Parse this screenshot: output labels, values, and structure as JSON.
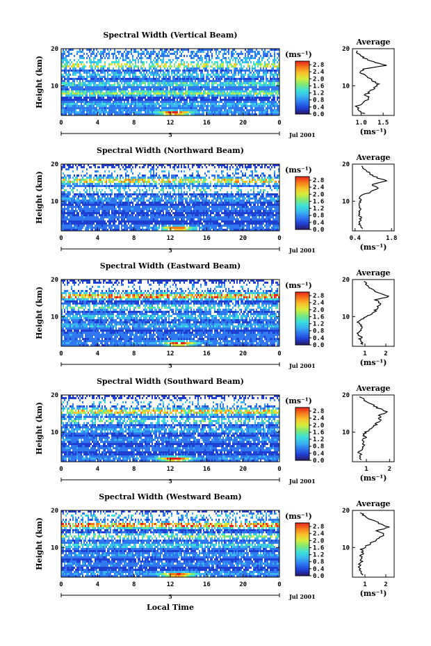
{
  "figure": {
    "xlabel": "Local Time",
    "date_label": "Jul 2001",
    "day_marker": "5",
    "ylabel": "Height (km)",
    "units_label": "(ms⁻¹)",
    "avg_title": "Average",
    "avg_xlabel": "(ms⁻¹)"
  },
  "palette": {
    "stops": [
      "#2a1a6a",
      "#1f3fd0",
      "#2f78f0",
      "#39b6f0",
      "#3ee0d8",
      "#7de87a",
      "#d6ec3c",
      "#f7c12a",
      "#f77a1c",
      "#e8231a"
    ]
  },
  "chart_data": [
    {
      "type": "heatmap",
      "title": "Spectral Width (Vertical Beam)",
      "x_ticks": [
        "0",
        "4",
        "8",
        "12",
        "16",
        "20",
        "0"
      ],
      "xlim": [
        0,
        24
      ],
      "y_ticks": [
        "20",
        "10"
      ],
      "ylim": [
        2,
        20
      ],
      "colorbar_ticks": [
        "2.8",
        "2.4",
        "2.0",
        "1.6",
        "1.2",
        "0.8",
        "0.4",
        "0.0"
      ],
      "colorbar_range": [
        0.0,
        3.0
      ],
      "layers": [
        {
          "h": 3.0,
          "w": 0.55,
          "jit": 0.2,
          "cov": 0.95
        },
        {
          "h": 5.0,
          "w": 0.75,
          "jit": 0.25,
          "cov": 0.95
        },
        {
          "h": 8.0,
          "w": 1.35,
          "jit": 0.4,
          "cov": 0.9
        },
        {
          "h": 10.5,
          "w": 1.05,
          "jit": 0.35,
          "cov": 0.85
        },
        {
          "h": 13.0,
          "w": 0.85,
          "jit": 0.3,
          "cov": 0.7
        },
        {
          "h": 15.5,
          "w": 1.6,
          "jit": 0.3,
          "cov": 0.55
        },
        {
          "h": 17.0,
          "w": 0.7,
          "jit": 0.25,
          "cov": 0.75
        },
        {
          "h": 19.0,
          "w": 0.5,
          "jit": 0.2,
          "cov": 0.9
        }
      ],
      "hot_spots": [
        {
          "t": 12.5,
          "h": 2.6,
          "w": 2.6
        }
      ],
      "avg": {
        "xticks": [
          "1.0",
          "1.5"
        ],
        "xlim": [
          0.8,
          1.75
        ],
        "yticks": [
          "20",
          "10"
        ],
        "ylim": [
          2,
          20
        ],
        "profile": [
          [
            2.5,
            1.05
          ],
          [
            3.5,
            0.95
          ],
          [
            4.5,
            0.9
          ],
          [
            5.5,
            1.05
          ],
          [
            6.5,
            1.2
          ],
          [
            7.5,
            1.1
          ],
          [
            8.5,
            1.2
          ],
          [
            9.5,
            1.3
          ],
          [
            10.5,
            1.4
          ],
          [
            11.5,
            1.25
          ],
          [
            12.5,
            1.1
          ],
          [
            13.5,
            1.0
          ],
          [
            14.5,
            1.05
          ],
          [
            15.5,
            1.6
          ],
          [
            16.5,
            1.25
          ],
          [
            17.5,
            1.05
          ],
          [
            18.5,
            0.95
          ],
          [
            19.5,
            0.9
          ]
        ]
      }
    },
    {
      "type": "heatmap",
      "title": "Spectral Width (Northward Beam)",
      "x_ticks": [
        "0",
        "4",
        "8",
        "12",
        "16",
        "20",
        "0"
      ],
      "xlim": [
        0,
        24
      ],
      "y_ticks": [
        "20",
        "10"
      ],
      "ylim": [
        2,
        20
      ],
      "colorbar_ticks": [
        "2.8",
        "2.4",
        "2.0",
        "1.6",
        "1.2",
        "0.8",
        "0.4",
        "0.0"
      ],
      "colorbar_range": [
        0.0,
        3.0
      ],
      "layers": [
        {
          "h": 3.0,
          "w": 0.4,
          "jit": 0.15,
          "cov": 0.95
        },
        {
          "h": 5.5,
          "w": 0.35,
          "jit": 0.15,
          "cov": 0.95
        },
        {
          "h": 8.0,
          "w": 0.4,
          "jit": 0.2,
          "cov": 0.9
        },
        {
          "h": 10.5,
          "w": 0.6,
          "jit": 0.25,
          "cov": 0.8
        },
        {
          "h": 13.0,
          "w": 1.0,
          "jit": 0.3,
          "cov": 0.35
        },
        {
          "h": 15.5,
          "w": 1.9,
          "jit": 0.3,
          "cov": 0.7
        },
        {
          "h": 18.0,
          "w": 0.6,
          "jit": 0.2,
          "cov": 0.3
        }
      ],
      "hot_spots": [
        {
          "t": 12.8,
          "h": 2.6,
          "w": 2.5
        }
      ],
      "avg": {
        "xticks": [
          "0.4",
          "1.8"
        ],
        "xlim": [
          0.3,
          1.9
        ],
        "yticks": [
          "20",
          "10"
        ],
        "ylim": [
          2,
          20
        ],
        "profile": [
          [
            2.5,
            0.7
          ],
          [
            3.5,
            0.6
          ],
          [
            4.5,
            0.55
          ],
          [
            5.5,
            0.6
          ],
          [
            6.5,
            0.55
          ],
          [
            7.5,
            0.55
          ],
          [
            8.5,
            0.6
          ],
          [
            9.5,
            0.55
          ],
          [
            10.5,
            0.6
          ],
          [
            11.5,
            0.65
          ],
          [
            12.5,
            1.0
          ],
          [
            13.5,
            1.25
          ],
          [
            14.5,
            1.05
          ],
          [
            15.5,
            1.6
          ],
          [
            16.5,
            1.2
          ],
          [
            17.5,
            0.95
          ],
          [
            18.5,
            0.8
          ],
          [
            19.5,
            0.65
          ]
        ]
      }
    },
    {
      "type": "heatmap",
      "title": "Spectral Width (Eastward Beam)",
      "x_ticks": [
        "0",
        "4",
        "8",
        "12",
        "16",
        "20",
        "0"
      ],
      "xlim": [
        0,
        24
      ],
      "y_ticks": [
        "20",
        "10"
      ],
      "ylim": [
        2,
        20
      ],
      "colorbar_ticks": [
        "2.8",
        "2.4",
        "2.0",
        "1.6",
        "1.2",
        "0.8",
        "0.4",
        "0.0"
      ],
      "colorbar_range": [
        0.0,
        3.0
      ],
      "layers": [
        {
          "h": 3.0,
          "w": 0.45,
          "jit": 0.2,
          "cov": 0.95
        },
        {
          "h": 5.0,
          "w": 0.4,
          "jit": 0.15,
          "cov": 0.95
        },
        {
          "h": 7.5,
          "w": 0.7,
          "jit": 0.25,
          "cov": 0.9
        },
        {
          "h": 10.0,
          "w": 0.8,
          "jit": 0.3,
          "cov": 0.8
        },
        {
          "h": 12.5,
          "w": 1.0,
          "jit": 0.3,
          "cov": 0.55
        },
        {
          "h": 15.5,
          "w": 2.3,
          "jit": 0.35,
          "cov": 0.8
        },
        {
          "h": 18.0,
          "w": 0.6,
          "jit": 0.2,
          "cov": 0.3
        }
      ],
      "hot_spots": [
        {
          "t": 13.0,
          "h": 2.7,
          "w": 2.6
        }
      ],
      "avg": {
        "xticks": [
          "1",
          "2"
        ],
        "xlim": [
          0.4,
          2.4
        ],
        "yticks": [
          "20",
          "10"
        ],
        "ylim": [
          2,
          20
        ],
        "profile": [
          [
            2.5,
            0.9
          ],
          [
            3.5,
            0.75
          ],
          [
            4.5,
            0.8
          ],
          [
            5.5,
            0.7
          ],
          [
            6.5,
            0.8
          ],
          [
            7.5,
            0.85
          ],
          [
            8.5,
            0.7
          ],
          [
            9.5,
            0.9
          ],
          [
            10.5,
            1.2
          ],
          [
            11.5,
            1.5
          ],
          [
            12.5,
            1.6
          ],
          [
            13.5,
            1.8
          ],
          [
            14.5,
            1.5
          ],
          [
            15.5,
            2.2
          ],
          [
            16.5,
            1.6
          ],
          [
            17.5,
            1.3
          ],
          [
            18.5,
            1.1
          ],
          [
            19.5,
            0.95
          ]
        ]
      }
    },
    {
      "type": "heatmap",
      "title": "Spectral Width (Southward Beam)",
      "x_ticks": [
        "0",
        "4",
        "8",
        "12",
        "16",
        "20",
        "0"
      ],
      "xlim": [
        0,
        24
      ],
      "y_ticks": [
        "20",
        "10"
      ],
      "ylim": [
        2,
        20
      ],
      "colorbar_ticks": [
        "2.8",
        "2.4",
        "2.0",
        "1.6",
        "1.2",
        "0.8",
        "0.4",
        "0.0"
      ],
      "colorbar_range": [
        0.0,
        3.0
      ],
      "layers": [
        {
          "h": 3.0,
          "w": 0.5,
          "jit": 0.2,
          "cov": 0.95
        },
        {
          "h": 5.5,
          "w": 0.4,
          "jit": 0.15,
          "cov": 0.95
        },
        {
          "h": 8.0,
          "w": 0.5,
          "jit": 0.2,
          "cov": 0.9
        },
        {
          "h": 10.5,
          "w": 0.7,
          "jit": 0.25,
          "cov": 0.8
        },
        {
          "h": 13.0,
          "w": 1.1,
          "jit": 0.3,
          "cov": 0.55
        },
        {
          "h": 15.5,
          "w": 2.0,
          "jit": 0.35,
          "cov": 0.75
        },
        {
          "h": 18.0,
          "w": 0.7,
          "jit": 0.25,
          "cov": 0.35
        }
      ],
      "hot_spots": [
        {
          "t": 12.5,
          "h": 2.7,
          "w": 2.6
        }
      ],
      "avg": {
        "xticks": [
          "1",
          "2"
        ],
        "xlim": [
          0.4,
          2.2
        ],
        "yticks": [
          "20",
          "10"
        ],
        "ylim": [
          2,
          20
        ],
        "profile": [
          [
            2.5,
            0.8
          ],
          [
            3.5,
            0.75
          ],
          [
            4.5,
            0.7
          ],
          [
            5.5,
            0.8
          ],
          [
            6.5,
            0.9
          ],
          [
            7.5,
            0.85
          ],
          [
            8.5,
            0.95
          ],
          [
            9.5,
            0.9
          ],
          [
            10.5,
            1.1
          ],
          [
            11.5,
            1.3
          ],
          [
            12.5,
            1.5
          ],
          [
            13.5,
            1.6
          ],
          [
            14.5,
            1.55
          ],
          [
            15.5,
            1.9
          ],
          [
            16.5,
            1.5
          ],
          [
            17.5,
            1.2
          ],
          [
            18.5,
            0.95
          ],
          [
            19.5,
            0.7
          ]
        ]
      }
    },
    {
      "type": "heatmap",
      "title": "Spectral Width (Westward Beam)",
      "x_ticks": [
        "0",
        "4",
        "8",
        "12",
        "16",
        "20",
        "0"
      ],
      "xlim": [
        0,
        24
      ],
      "y_ticks": [
        "20",
        "10"
      ],
      "ylim": [
        2,
        20
      ],
      "colorbar_ticks": [
        "2.8",
        "2.4",
        "2.0",
        "1.6",
        "1.2",
        "0.8",
        "0.4",
        "0.0"
      ],
      "colorbar_range": [
        0.0,
        3.0
      ],
      "layers": [
        {
          "h": 3.0,
          "w": 0.55,
          "jit": 0.2,
          "cov": 0.95
        },
        {
          "h": 5.5,
          "w": 0.45,
          "jit": 0.15,
          "cov": 0.95
        },
        {
          "h": 8.0,
          "w": 0.55,
          "jit": 0.2,
          "cov": 0.9
        },
        {
          "h": 10.5,
          "w": 0.9,
          "jit": 0.3,
          "cov": 0.8
        },
        {
          "h": 13.0,
          "w": 1.2,
          "jit": 0.3,
          "cov": 0.55
        },
        {
          "h": 16.0,
          "w": 2.4,
          "jit": 0.35,
          "cov": 0.75
        },
        {
          "h": 18.5,
          "w": 0.8,
          "jit": 0.25,
          "cov": 0.45
        }
      ],
      "hot_spots": [
        {
          "t": 12.8,
          "h": 2.6,
          "w": 2.5
        }
      ],
      "avg": {
        "xticks": [
          "1",
          "2"
        ],
        "xlim": [
          0.4,
          2.4
        ],
        "yticks": [
          "20",
          "10"
        ],
        "ylim": [
          2,
          20
        ],
        "profile": [
          [
            2.5,
            0.85
          ],
          [
            3.5,
            0.75
          ],
          [
            4.5,
            0.7
          ],
          [
            5.5,
            0.75
          ],
          [
            6.5,
            0.85
          ],
          [
            7.5,
            0.8
          ],
          [
            8.5,
            0.9
          ],
          [
            9.5,
            0.85
          ],
          [
            10.5,
            1.1
          ],
          [
            11.5,
            1.4
          ],
          [
            12.5,
            1.7
          ],
          [
            13.5,
            1.9
          ],
          [
            14.5,
            1.6
          ],
          [
            15.5,
            2.1
          ],
          [
            16.5,
            1.7
          ],
          [
            17.5,
            1.3
          ],
          [
            18.5,
            1.0
          ],
          [
            19.5,
            0.8
          ]
        ]
      }
    }
  ]
}
